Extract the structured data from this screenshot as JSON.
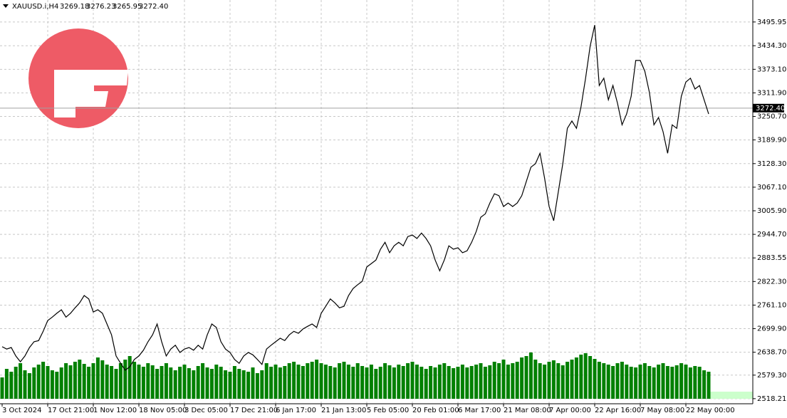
{
  "chart_data": {
    "type": "line",
    "header": {
      "symbol": "XAUUSD.i,H4",
      "ohlc": [
        {
          "value": 3269.18,
          "label": "3269.18"
        },
        {
          "value": 3276.23,
          "label": "3276.23"
        },
        {
          "value": 3265.95,
          "label": "3265.95"
        },
        {
          "value": 3272.4,
          "label": "3272.40"
        }
      ]
    },
    "last_price": {
      "value": 3272.4,
      "label": "3272.40"
    },
    "categories": [
      "3 Oct 2024",
      null,
      null,
      null,
      null,
      null,
      null,
      null,
      null,
      null,
      "17 Oct 21:00",
      null,
      null,
      null,
      null,
      null,
      null,
      null,
      null,
      null,
      "1 Nov 12:00",
      null,
      null,
      null,
      null,
      null,
      null,
      null,
      null,
      null,
      "18 Nov 05:00",
      null,
      null,
      null,
      null,
      null,
      null,
      null,
      null,
      null,
      "3 Dec 05:00",
      null,
      null,
      null,
      null,
      null,
      null,
      null,
      null,
      null,
      "17 Dec 21:00",
      null,
      null,
      null,
      null,
      null,
      null,
      null,
      null,
      null,
      "6 Jan 17:00",
      null,
      null,
      null,
      null,
      null,
      null,
      null,
      null,
      null,
      "21 Jan 13:00",
      null,
      null,
      null,
      null,
      null,
      null,
      null,
      null,
      null,
      "5 Feb 05:00",
      null,
      null,
      null,
      null,
      null,
      null,
      null,
      null,
      null,
      "20 Feb 01:00",
      null,
      null,
      null,
      null,
      null,
      null,
      null,
      null,
      null,
      "6 Mar 17:00",
      null,
      null,
      null,
      null,
      null,
      null,
      null,
      null,
      null,
      "21 Mar 08:00",
      null,
      null,
      null,
      null,
      null,
      null,
      null,
      null,
      null,
      "7 Apr 00:00",
      null,
      null,
      null,
      null,
      null,
      null,
      null,
      null,
      null,
      "22 Apr 16:00",
      null,
      null,
      null,
      null,
      null,
      null,
      null,
      null,
      null,
      "7 May 08:00",
      null,
      null,
      null,
      null,
      null,
      null,
      null,
      null,
      null,
      "22 May 00:00",
      null,
      null,
      null,
      null,
      null
    ],
    "series": [
      {
        "color": "#000000",
        "values": [
          2653,
          2647,
          2651,
          2629,
          2614,
          2629,
          2651,
          2666,
          2669,
          2693,
          2721,
          2730,
          2740,
          2749,
          2730,
          2740,
          2754,
          2767,
          2786,
          2777,
          2743,
          2749,
          2740,
          2712,
          2684,
          2629,
          2610,
          2592,
          2601,
          2620,
          2629,
          2644,
          2666,
          2684,
          2712,
          2666,
          2629,
          2647,
          2657,
          2638,
          2647,
          2651,
          2644,
          2657,
          2647,
          2684,
          2712,
          2703,
          2666,
          2647,
          2638,
          2620,
          2610,
          2629,
          2638,
          2632,
          2620,
          2607,
          2647,
          2657,
          2666,
          2675,
          2669,
          2684,
          2693,
          2688,
          2699,
          2706,
          2712,
          2703,
          2740,
          2758,
          2777,
          2767,
          2754,
          2758,
          2786,
          2804,
          2814,
          2823,
          2860,
          2869,
          2878,
          2906,
          2924,
          2897,
          2915,
          2924,
          2915,
          2939,
          2943,
          2934,
          2948,
          2934,
          2915,
          2878,
          2850,
          2878,
          2915,
          2906,
          2910,
          2897,
          2902,
          2924,
          2952,
          2989,
          2998,
          3026,
          3050,
          3045,
          3017,
          3026,
          3017,
          3026,
          3045,
          3082,
          3119,
          3128,
          3155,
          3091,
          3017,
          2980,
          3054,
          3128,
          3220,
          3239,
          3220,
          3276,
          3350,
          3433,
          3488,
          3331,
          3350,
          3294,
          3331,
          3285,
          3229,
          3257,
          3303,
          3396,
          3396,
          3368,
          3313,
          3229,
          3248,
          3211,
          3155,
          3229,
          3220,
          3303,
          3340,
          3350,
          3322,
          3331,
          3294,
          3257
        ]
      }
    ],
    "volume": {
      "color": "#008000",
      "values": [
        30,
        42,
        38,
        45,
        50,
        40,
        36,
        44,
        48,
        52,
        46,
        40,
        38,
        44,
        50,
        47,
        52,
        55,
        49,
        45,
        50,
        58,
        54,
        48,
        46,
        42,
        50,
        55,
        60,
        52,
        48,
        45,
        50,
        47,
        42,
        46,
        50,
        44,
        40,
        45,
        48,
        43,
        40,
        46,
        50,
        44,
        42,
        48,
        45,
        40,
        38,
        46,
        42,
        40,
        38,
        44,
        36,
        40,
        50,
        45,
        48,
        44,
        46,
        50,
        52,
        48,
        46,
        50,
        52,
        55,
        50,
        48,
        46,
        44,
        50,
        52,
        48,
        45,
        50,
        46,
        44,
        48,
        42,
        45,
        50,
        47,
        44,
        48,
        46,
        50,
        52,
        48,
        45,
        42,
        46,
        44,
        48,
        50,
        46,
        43,
        45,
        48,
        44,
        46,
        48,
        50,
        45,
        47,
        52,
        50,
        55,
        48,
        50,
        52,
        58,
        60,
        65,
        55,
        50,
        48,
        52,
        54,
        50,
        47,
        52,
        55,
        58,
        62,
        64,
        60,
        56,
        52,
        50,
        48,
        46,
        50,
        52,
        48,
        45,
        44,
        48,
        50,
        46,
        44,
        48,
        50,
        46,
        45,
        47,
        50,
        48,
        44,
        46,
        45,
        40,
        38
      ]
    },
    "ylim": [
      2505,
      3553
    ],
    "yticks": [
      {
        "value": 2518.21,
        "label": "2518.21"
      },
      {
        "value": 2579.3,
        "label": "2579.30"
      },
      {
        "value": 2638.7,
        "label": "2638.70"
      },
      {
        "value": 2699.9,
        "label": "2699.90"
      },
      {
        "value": 2761.1,
        "label": "2761.10"
      },
      {
        "value": 2822.3,
        "label": "2822.30"
      },
      {
        "value": 2883.55,
        "label": "2883.55"
      },
      {
        "value": 2944.7,
        "label": "2944.70"
      },
      {
        "value": 3005.9,
        "label": "3005.90"
      },
      {
        "value": 3067.1,
        "label": "3067.10"
      },
      {
        "value": 3128.3,
        "label": "3128.30"
      },
      {
        "value": 3189.9,
        "label": "3189.90"
      },
      {
        "value": 3250.7,
        "label": "3250.70"
      },
      {
        "value": 3311.9,
        "label": "3311.90"
      },
      {
        "value": 3373.1,
        "label": "3373.10"
      },
      {
        "value": 3434.3,
        "label": "3434.30"
      },
      {
        "value": 3495.95,
        "label": "3495.95"
      }
    ],
    "grid": true
  }
}
